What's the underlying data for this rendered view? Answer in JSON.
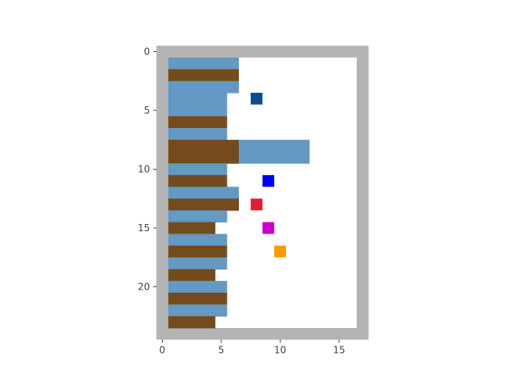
{
  "chart_data": {
    "type": "heatmap",
    "title": "",
    "xlabel": "",
    "ylabel": "",
    "xlim": [
      0,
      17
    ],
    "ylim": [
      24,
      0
    ],
    "x_ticks": [
      0,
      5,
      10,
      15
    ],
    "y_ticks": [
      0,
      5,
      10,
      15,
      20
    ],
    "x_tick_labels": [
      "0",
      "5",
      "10",
      "15"
    ],
    "y_tick_labels": [
      "0",
      "5",
      "10",
      "15",
      "20"
    ],
    "grid": false,
    "colors": {
      "wall": "#b3b3b3",
      "floor": "#ffffff",
      "blue_bar": "#6399c2",
      "brown_bar": "#734b1c",
      "tick": "#444444"
    },
    "bars": [
      {
        "row": 1,
        "x_start": 1,
        "x_end": 7,
        "color": "blue_bar"
      },
      {
        "row": 2,
        "x_start": 1,
        "x_end": 7,
        "color": "brown_bar"
      },
      {
        "row": 3,
        "x_start": 1,
        "x_end": 7,
        "color": "blue_bar"
      },
      {
        "row": 4,
        "x_start": 1,
        "x_end": 6,
        "color": "blue_bar"
      },
      {
        "row": 5,
        "x_start": 1,
        "x_end": 6,
        "color": "blue_bar"
      },
      {
        "row": 6,
        "x_start": 1,
        "x_end": 6,
        "color": "brown_bar"
      },
      {
        "row": 7,
        "x_start": 1,
        "x_end": 6,
        "color": "blue_bar"
      },
      {
        "row": 8,
        "x_start": 1,
        "x_end": 7,
        "color": "brown_bar"
      },
      {
        "row": 8,
        "x_start": 7,
        "x_end": 13,
        "color": "blue_bar"
      },
      {
        "row": 9,
        "x_start": 1,
        "x_end": 7,
        "color": "brown_bar"
      },
      {
        "row": 9,
        "x_start": 7,
        "x_end": 13,
        "color": "blue_bar"
      },
      {
        "row": 10,
        "x_start": 1,
        "x_end": 6,
        "color": "blue_bar"
      },
      {
        "row": 11,
        "x_start": 1,
        "x_end": 6,
        "color": "brown_bar"
      },
      {
        "row": 12,
        "x_start": 1,
        "x_end": 7,
        "color": "blue_bar"
      },
      {
        "row": 13,
        "x_start": 1,
        "x_end": 7,
        "color": "brown_bar"
      },
      {
        "row": 14,
        "x_start": 1,
        "x_end": 6,
        "color": "blue_bar"
      },
      {
        "row": 15,
        "x_start": 1,
        "x_end": 5,
        "color": "brown_bar"
      },
      {
        "row": 16,
        "x_start": 1,
        "x_end": 6,
        "color": "blue_bar"
      },
      {
        "row": 17,
        "x_start": 1,
        "x_end": 6,
        "color": "brown_bar"
      },
      {
        "row": 18,
        "x_start": 1,
        "x_end": 6,
        "color": "blue_bar"
      },
      {
        "row": 19,
        "x_start": 1,
        "x_end": 5,
        "color": "brown_bar"
      },
      {
        "row": 20,
        "x_start": 1,
        "x_end": 6,
        "color": "blue_bar"
      },
      {
        "row": 21,
        "x_start": 1,
        "x_end": 6,
        "color": "brown_bar"
      },
      {
        "row": 22,
        "x_start": 1,
        "x_end": 6,
        "color": "blue_bar"
      },
      {
        "row": 23,
        "x_start": 1,
        "x_end": 5,
        "color": "brown_bar"
      }
    ],
    "markers": [
      {
        "name": "navy-square",
        "x": 8,
        "y": 4,
        "color": "#0b4c91"
      },
      {
        "name": "blue-square",
        "x": 9,
        "y": 11,
        "color": "#0000ee"
      },
      {
        "name": "red-square",
        "x": 8,
        "y": 13,
        "color": "#dc1f36"
      },
      {
        "name": "magenta-square",
        "x": 9,
        "y": 15,
        "color": "#cc00cc"
      },
      {
        "name": "orange-square",
        "x": 10,
        "y": 17,
        "color": "#ff9900"
      }
    ]
  }
}
